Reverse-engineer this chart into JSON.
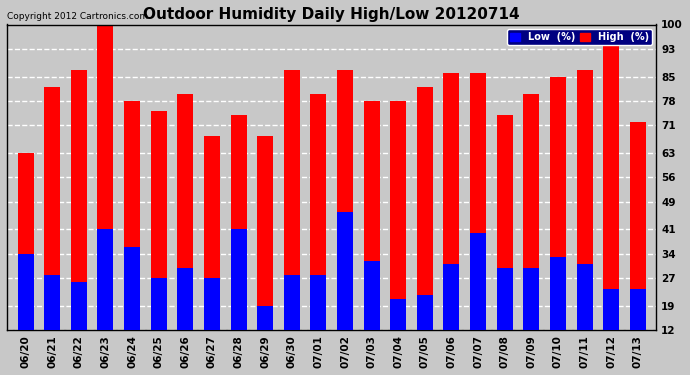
{
  "title": "Outdoor Humidity Daily High/Low 20120714",
  "copyright": "Copyright 2012 Cartronics.com",
  "legend_low": "Low  (%)",
  "legend_high": "High  (%)",
  "dates": [
    "06/20",
    "06/21",
    "06/22",
    "06/23",
    "06/24",
    "06/25",
    "06/26",
    "06/27",
    "06/28",
    "06/29",
    "06/30",
    "07/01",
    "07/02",
    "07/03",
    "07/04",
    "07/05",
    "07/06",
    "07/07",
    "07/08",
    "07/09",
    "07/10",
    "07/11",
    "07/12",
    "07/13"
  ],
  "high": [
    63,
    82,
    87,
    100,
    78,
    75,
    80,
    68,
    74,
    68,
    87,
    80,
    87,
    78,
    78,
    82,
    86,
    86,
    74,
    80,
    85,
    87,
    94,
    72
  ],
  "low": [
    34,
    28,
    26,
    41,
    36,
    27,
    30,
    27,
    41,
    19,
    28,
    28,
    46,
    32,
    21,
    22,
    31,
    40,
    30,
    30,
    33,
    31,
    24,
    24
  ],
  "bar_color_high": "#ff0000",
  "bar_color_low": "#0000ff",
  "background_color": "#c8c8c8",
  "plot_bg_color": "#c8c8c8",
  "grid_color": "#ffffff",
  "yticks": [
    12,
    19,
    27,
    34,
    41,
    49,
    56,
    63,
    71,
    78,
    85,
    93,
    100
  ],
  "ymin": 12,
  "ymax": 100,
  "title_fontsize": 11,
  "axis_fontsize": 7.5,
  "bar_width": 0.6
}
